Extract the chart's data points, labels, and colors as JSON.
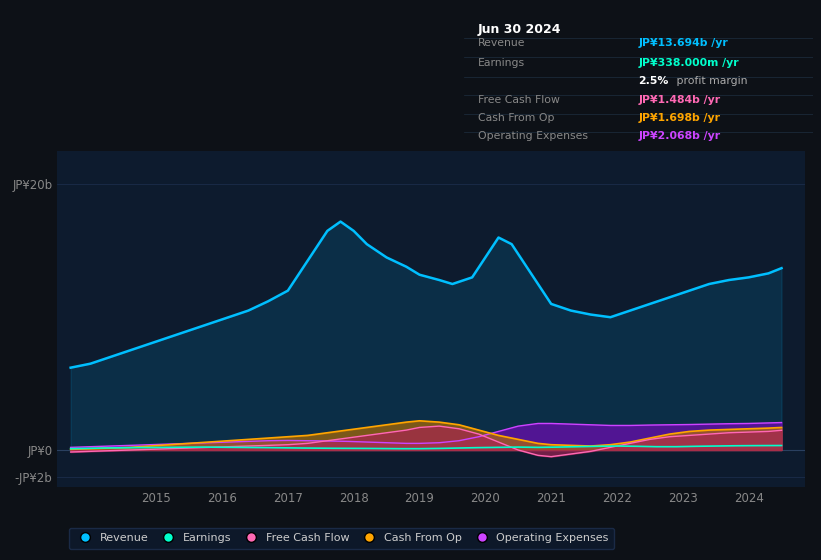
{
  "bg_color": "#0d1117",
  "chart_bg": "#0d1b2e",
  "table_bg": "#0a0f1a",
  "title": "Jun 30 2024",
  "table_entries": [
    {
      "label": "Revenue",
      "value": "JP¥13.694b /yr",
      "color": "#00bfff"
    },
    {
      "label": "Earnings",
      "value": "JP¥338.000m /yr",
      "color": "#00ffcc"
    },
    {
      "label": "",
      "value1": "2.5%",
      "value2": " profit margin",
      "color1": "#ffffff",
      "color2": "#aaaaaa"
    },
    {
      "label": "Free Cash Flow",
      "value": "JP¥1.484b /yr",
      "color": "#ff69b4"
    },
    {
      "label": "Cash From Op",
      "value": "JP¥1.698b /yr",
      "color": "#ffa500"
    },
    {
      "label": "Operating Expenses",
      "value": "JP¥2.068b /yr",
      "color": "#cc44ff"
    }
  ],
  "xlim": [
    2013.5,
    2024.85
  ],
  "ylim": [
    -2.8,
    22.5
  ],
  "xtick_positions": [
    2015,
    2016,
    2017,
    2018,
    2019,
    2020,
    2021,
    2022,
    2023,
    2024
  ],
  "xtick_labels": [
    "2015",
    "2016",
    "2017",
    "2018",
    "2019",
    "2020",
    "2021",
    "2022",
    "2023",
    "2024"
  ],
  "ytick_positions": [
    -2,
    0,
    20
  ],
  "ytick_labels": [
    "-JP¥2b",
    "JP¥0",
    "JP¥20b"
  ],
  "legend_items": [
    {
      "label": "Revenue",
      "color": "#00bfff"
    },
    {
      "label": "Earnings",
      "color": "#00ffcc"
    },
    {
      "label": "Free Cash Flow",
      "color": "#ff69b4"
    },
    {
      "label": "Cash From Op",
      "color": "#ffa500"
    },
    {
      "label": "Operating Expenses",
      "color": "#cc44ff"
    }
  ],
  "revenue_x": [
    2013.7,
    2014.0,
    2014.3,
    2014.6,
    2014.9,
    2015.2,
    2015.5,
    2015.8,
    2016.1,
    2016.4,
    2016.7,
    2017.0,
    2017.2,
    2017.4,
    2017.6,
    2017.8,
    2018.0,
    2018.2,
    2018.5,
    2018.8,
    2019.0,
    2019.3,
    2019.5,
    2019.8,
    2020.0,
    2020.2,
    2020.4,
    2020.6,
    2020.8,
    2021.0,
    2021.3,
    2021.6,
    2021.9,
    2022.2,
    2022.5,
    2022.8,
    2023.1,
    2023.4,
    2023.7,
    2024.0,
    2024.3,
    2024.5
  ],
  "revenue_y": [
    6.2,
    6.5,
    7.0,
    7.5,
    8.0,
    8.5,
    9.0,
    9.5,
    10.0,
    10.5,
    11.2,
    12.0,
    13.5,
    15.0,
    16.5,
    17.2,
    16.5,
    15.5,
    14.5,
    13.8,
    13.2,
    12.8,
    12.5,
    13.0,
    14.5,
    16.0,
    15.5,
    14.0,
    12.5,
    11.0,
    10.5,
    10.2,
    10.0,
    10.5,
    11.0,
    11.5,
    12.0,
    12.5,
    12.8,
    13.0,
    13.3,
    13.694
  ],
  "earnings_x": [
    2013.7,
    2014.2,
    2014.7,
    2015.2,
    2015.7,
    2016.2,
    2016.7,
    2017.2,
    2017.7,
    2018.2,
    2018.7,
    2019.0,
    2019.3,
    2019.6,
    2019.9,
    2020.2,
    2020.5,
    2020.8,
    2021.1,
    2021.4,
    2021.7,
    2022.0,
    2022.3,
    2022.6,
    2022.9,
    2023.2,
    2023.5,
    2023.8,
    2024.1,
    2024.5
  ],
  "earnings_y": [
    0.1,
    0.15,
    0.18,
    0.2,
    0.22,
    0.2,
    0.18,
    0.15,
    0.13,
    0.12,
    0.1,
    0.1,
    0.12,
    0.15,
    0.18,
    0.2,
    0.22,
    0.2,
    0.22,
    0.25,
    0.28,
    0.3,
    0.28,
    0.25,
    0.25,
    0.28,
    0.3,
    0.32,
    0.33,
    0.338
  ],
  "fcf_x": [
    2013.7,
    2014.0,
    2014.3,
    2014.6,
    2014.9,
    2015.2,
    2015.5,
    2015.8,
    2016.1,
    2016.4,
    2016.7,
    2017.0,
    2017.3,
    2017.6,
    2017.9,
    2018.2,
    2018.5,
    2018.8,
    2019.0,
    2019.3,
    2019.6,
    2019.9,
    2020.2,
    2020.5,
    2020.8,
    2021.0,
    2021.3,
    2021.6,
    2021.9,
    2022.2,
    2022.5,
    2022.8,
    2023.1,
    2023.4,
    2023.7,
    2024.0,
    2024.3,
    2024.5
  ],
  "fcf_y": [
    -0.15,
    -0.1,
    -0.05,
    0.0,
    0.05,
    0.1,
    0.15,
    0.2,
    0.25,
    0.3,
    0.35,
    0.4,
    0.5,
    0.7,
    0.9,
    1.1,
    1.3,
    1.5,
    1.7,
    1.8,
    1.6,
    1.2,
    0.6,
    0.0,
    -0.4,
    -0.5,
    -0.3,
    -0.1,
    0.2,
    0.5,
    0.8,
    1.0,
    1.1,
    1.2,
    1.3,
    1.35,
    1.4,
    1.484
  ],
  "cfop_x": [
    2013.7,
    2014.0,
    2014.3,
    2014.6,
    2014.9,
    2015.2,
    2015.5,
    2015.8,
    2016.1,
    2016.4,
    2016.7,
    2017.0,
    2017.3,
    2017.6,
    2017.9,
    2018.2,
    2018.5,
    2018.8,
    2019.0,
    2019.3,
    2019.6,
    2019.9,
    2020.2,
    2020.5,
    2020.8,
    2021.0,
    2021.3,
    2021.6,
    2021.9,
    2022.2,
    2022.5,
    2022.8,
    2023.1,
    2023.4,
    2023.7,
    2024.0,
    2024.3,
    2024.5
  ],
  "cfop_y": [
    0.05,
    0.1,
    0.15,
    0.2,
    0.3,
    0.4,
    0.5,
    0.6,
    0.7,
    0.8,
    0.9,
    1.0,
    1.1,
    1.3,
    1.5,
    1.7,
    1.9,
    2.1,
    2.2,
    2.1,
    1.9,
    1.5,
    1.1,
    0.8,
    0.5,
    0.4,
    0.35,
    0.3,
    0.4,
    0.6,
    0.9,
    1.2,
    1.4,
    1.5,
    1.55,
    1.6,
    1.65,
    1.698
  ],
  "opex_x": [
    2013.7,
    2014.0,
    2014.3,
    2014.6,
    2014.9,
    2015.2,
    2015.5,
    2015.8,
    2016.1,
    2016.4,
    2016.7,
    2017.0,
    2017.3,
    2017.6,
    2017.9,
    2018.2,
    2018.5,
    2018.8,
    2019.0,
    2019.3,
    2019.6,
    2019.9,
    2020.2,
    2020.5,
    2020.8,
    2021.0,
    2021.3,
    2021.6,
    2021.9,
    2022.2,
    2022.5,
    2022.8,
    2023.1,
    2023.4,
    2023.7,
    2024.0,
    2024.3,
    2024.5
  ],
  "opex_y": [
    0.2,
    0.25,
    0.3,
    0.35,
    0.4,
    0.45,
    0.5,
    0.55,
    0.6,
    0.65,
    0.7,
    0.72,
    0.7,
    0.68,
    0.65,
    0.6,
    0.55,
    0.5,
    0.5,
    0.55,
    0.7,
    1.0,
    1.4,
    1.8,
    2.0,
    2.0,
    1.95,
    1.9,
    1.85,
    1.85,
    1.88,
    1.9,
    1.92,
    1.95,
    1.98,
    2.0,
    2.04,
    2.068
  ]
}
